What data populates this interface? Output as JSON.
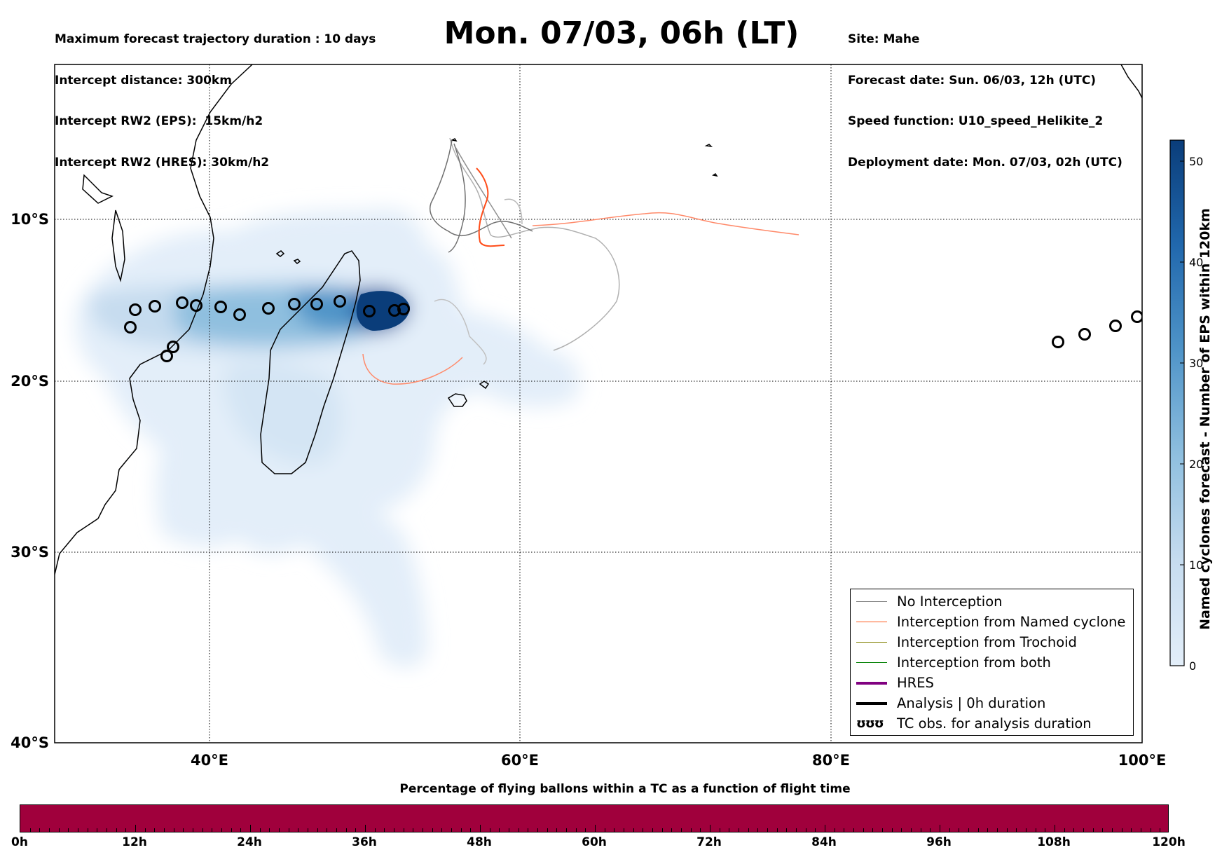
{
  "header": {
    "left_lines": [
      "Maximum forecast trajectory duration : 10 days",
      "Intercept distance: 300km",
      "Intercept RW2 (EPS):  15km/h2",
      "Intercept RW2 (HRES): 30km/h2"
    ],
    "title": "Mon. 07/03, 06h (LT)",
    "right_lines": [
      "Site: Mahe",
      "Forecast date: Sun. 06/03, 12h (UTC)",
      "Speed function: U10_speed_Helikite_2",
      "Deployment date: Mon. 07/03, 02h (UTC)"
    ]
  },
  "map": {
    "lon_ticks": [
      "40°E",
      "60°E",
      "80°E",
      "100°E"
    ],
    "lat_ticks": [
      "10°S",
      "20°S",
      "30°S",
      "40°S"
    ],
    "grid": "dotted"
  },
  "legend": {
    "items": [
      {
        "label": "No Interception",
        "color": "#808080",
        "style": "thin-line"
      },
      {
        "label": "Interception from Named cyclone",
        "color": "#ff5a1e",
        "style": "thin-line"
      },
      {
        "label": "Interception from Trochoid",
        "color": "#808000",
        "style": "thin-line"
      },
      {
        "label": "Interception from both",
        "color": "#008000",
        "style": "thin-line"
      },
      {
        "label": "HRES",
        "color": "#800080",
        "style": "thick-line"
      },
      {
        "label": "Analysis | 0h duration",
        "color": "#000000",
        "style": "thick-line"
      },
      {
        "label": "TC obs. for analysis duration",
        "color": "#000000",
        "style": "symbol",
        "symbol": "ʊʊʊ"
      }
    ]
  },
  "colorbar": {
    "title": "Named cyclones forecast - Number of EPS within 120km",
    "ticks": [
      "0",
      "10",
      "20",
      "30",
      "40",
      "50"
    ],
    "colors": [
      "#e3eef9",
      "#a8cee4",
      "#5b9fcd",
      "#2b7abb",
      "#1860a8",
      "#0a3d7a"
    ]
  },
  "timeline": {
    "title": "Percentage of flying ballons within a TC as a function of flight time",
    "ticks": [
      "0h",
      "12h",
      "24h",
      "36h",
      "48h",
      "60h",
      "72h",
      "84h",
      "96h",
      "108h",
      "120h"
    ],
    "bar_color": "#a0003c"
  }
}
